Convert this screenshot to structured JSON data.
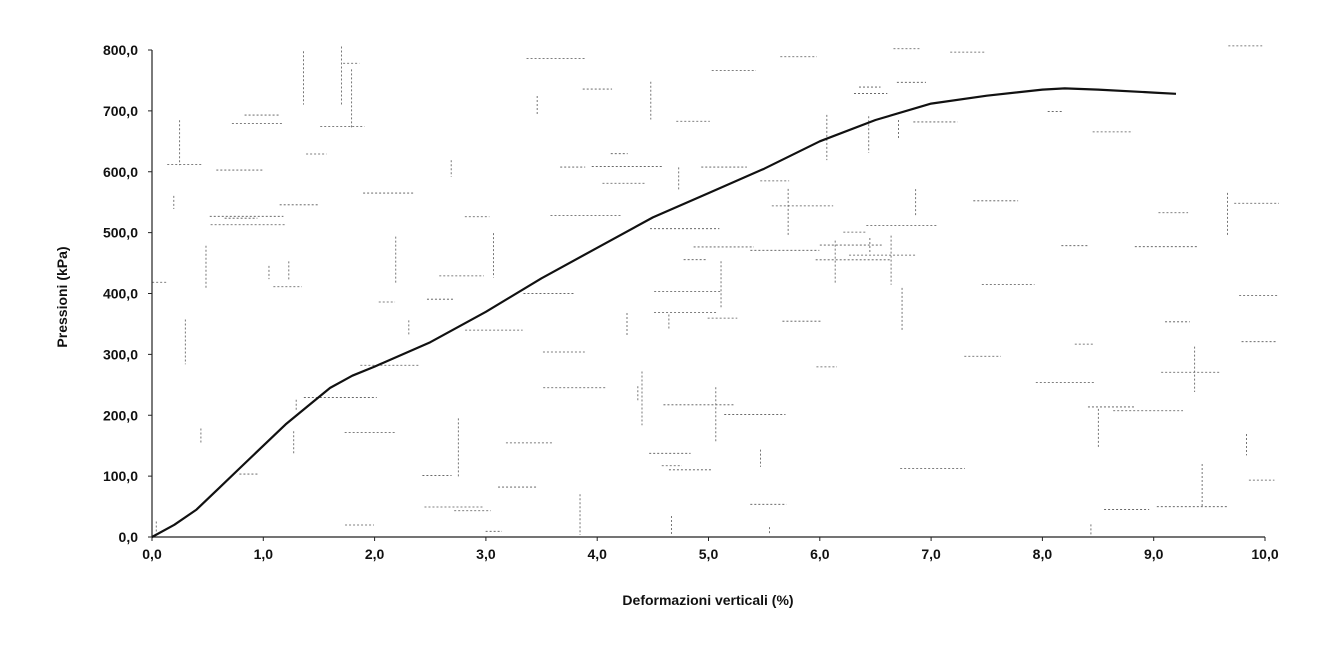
{
  "chart_data": {
    "type": "line",
    "title": "",
    "xlabel": "Deformazioni verticali (%)",
    "ylabel": "Pressioni (kPa)",
    "xlim": [
      0,
      10
    ],
    "ylim": [
      0,
      800
    ],
    "x_ticks": [
      "0,0",
      "1,0",
      "2,0",
      "3,0",
      "4,0",
      "5,0",
      "6,0",
      "7,0",
      "8,0",
      "9,0",
      "10,0"
    ],
    "y_ticks": [
      "0,0",
      "100,0",
      "200,0",
      "300,0",
      "400,0",
      "500,0",
      "600,0",
      "700,0",
      "800,0"
    ],
    "grid": false,
    "series": [
      {
        "x": [
          0.0,
          0.2,
          0.4,
          0.6,
          0.8,
          1.0,
          1.2,
          1.4,
          1.6,
          1.8,
          2.0,
          2.5,
          3.0,
          3.5,
          4.0,
          4.5,
          5.0,
          5.5,
          6.0,
          6.5,
          7.0,
          7.5,
          8.0,
          8.2,
          8.5,
          9.0,
          9.2
        ],
        "y": [
          0,
          20,
          45,
          80,
          115,
          150,
          185,
          215,
          245,
          265,
          280,
          320,
          370,
          425,
          475,
          525,
          565,
          605,
          650,
          685,
          712,
          725,
          735,
          737,
          735,
          730,
          728
        ]
      }
    ]
  }
}
